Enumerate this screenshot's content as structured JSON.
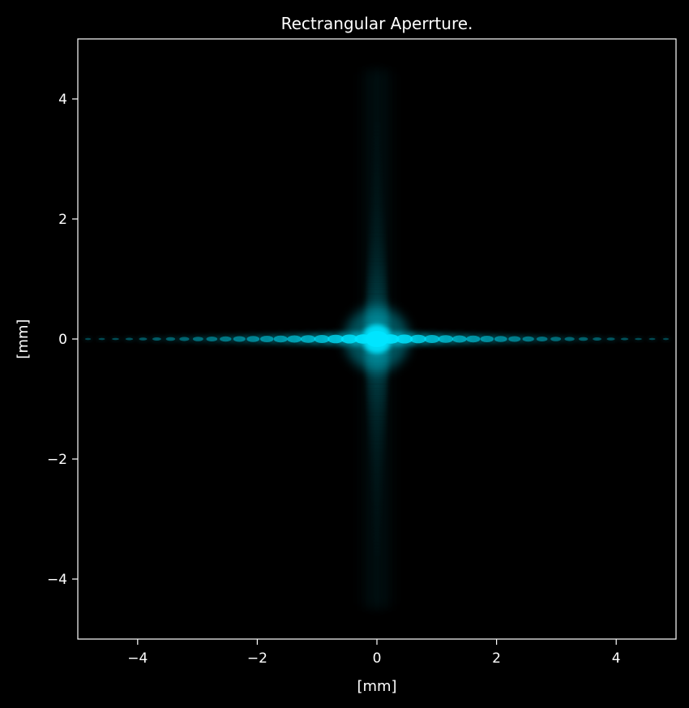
{
  "chart_data": {
    "type": "heatmap",
    "title": "Rectrangular Aperrture.",
    "xlabel": "[mm]",
    "ylabel": "[mm]",
    "xlim": [
      -5,
      5
    ],
    "ylim": [
      -5,
      5
    ],
    "x_ticks": [
      -4,
      -2,
      0,
      2,
      4
    ],
    "y_ticks": [
      -4,
      -2,
      0,
      2,
      4
    ],
    "x_tick_labels": [
      "−4",
      "−2",
      "0",
      "2",
      "4"
    ],
    "y_tick_labels": [
      "−4",
      "−2",
      "0",
      "2",
      "4"
    ],
    "grid": false,
    "legend": false,
    "colormap": "black-to-cyan intensity",
    "colors": {
      "background": "#000000",
      "axes": "#ffffff",
      "intensity": "#00e5ff"
    },
    "pattern": {
      "description_type": "rectangular-aperture Fraunhofer diffraction",
      "central_peak": {
        "x": 0,
        "y": 0,
        "intensity": 1.0
      },
      "horizontal_fringe_spacing_mm": 0.23,
      "vertical_extent_mm": 4.5,
      "horizontal_extent_mm": 5.0
    }
  }
}
